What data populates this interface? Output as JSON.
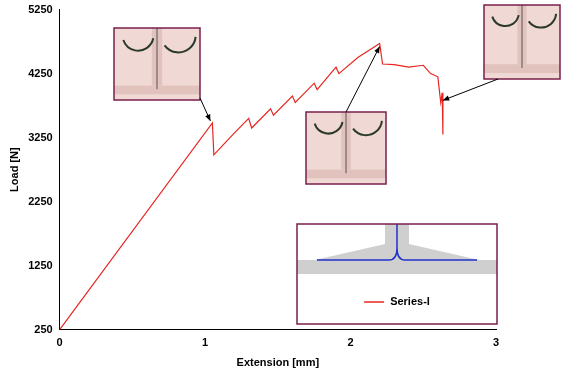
{
  "chart_data": {
    "type": "line",
    "x_label": "Extension [mm]",
    "y_label": "Load [N]",
    "series": [
      {
        "name": "Series-I",
        "color": "#e8261f",
        "x": [
          0,
          1.05,
          1.06,
          1.2,
          1.3,
          1.32,
          1.45,
          1.47,
          1.6,
          1.62,
          1.75,
          1.77,
          1.9,
          1.92,
          2.05,
          2.2,
          2.22,
          2.3,
          2.4,
          2.5,
          2.55,
          2.6,
          2.62,
          2.63,
          2.635
        ],
        "values": [
          250,
          3480,
          2980,
          3320,
          3550,
          3400,
          3700,
          3600,
          3900,
          3800,
          4100,
          4000,
          4350,
          4250,
          4500,
          4720,
          4400,
          4390,
          4350,
          4380,
          4250,
          4200,
          3800,
          3950,
          3300
        ]
      }
    ],
    "xlim": [
      0,
      3
    ],
    "xticks": [
      0,
      1,
      2,
      3
    ],
    "ylim": [
      250,
      5250
    ],
    "yticks": [
      250,
      1250,
      2250,
      3250,
      4250,
      5250
    ],
    "grid": false,
    "legend": "lower right"
  }
}
